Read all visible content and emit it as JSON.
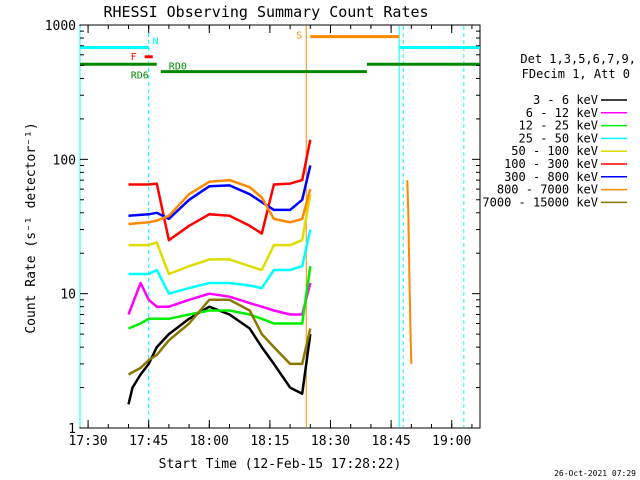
{
  "chart_data": {
    "type": "line",
    "title": "RHESSI Observing Summary Count Rates",
    "xlabel": "Start Time (12-Feb-15 17:28:22)",
    "ylabel": "Count Rate (s⁻¹ detector⁻¹)",
    "y_scale": "log",
    "xlim": [
      "17:28",
      "19:07"
    ],
    "ylim": [
      1,
      1000
    ],
    "x_ticks": [
      "17:30",
      "17:45",
      "18:00",
      "18:15",
      "18:30",
      "18:45",
      "19:00"
    ],
    "y_ticks": [
      "1",
      "10",
      "100",
      "1000"
    ],
    "detector_info": [
      "Det 1,3,5,6,7,9,",
      "FDecim 1, Att 0"
    ],
    "timestamp": "26-Oct-2021 07:29",
    "legend_position": "right",
    "series": [
      {
        "name": "3 - 6 keV",
        "color": "#000000",
        "x": [
          "17:40",
          "17:41",
          "17:43",
          "17:45",
          "17:47",
          "17:50",
          "17:55",
          "18:00",
          "18:05",
          "18:10",
          "18:13",
          "18:16",
          "18:20",
          "18:23",
          "18:25"
        ],
        "values": [
          1.5,
          2.0,
          2.5,
          3.0,
          4.0,
          5.0,
          6.5,
          8.0,
          7.0,
          5.5,
          4.0,
          3.0,
          2.0,
          1.8,
          5.0
        ]
      },
      {
        "name": "6 - 12 keV",
        "color": "#ff00ff",
        "x": [
          "17:40",
          "17:43",
          "17:45",
          "17:47",
          "17:50",
          "17:55",
          "18:00",
          "18:05",
          "18:10",
          "18:13",
          "18:16",
          "18:20",
          "18:23",
          "18:25"
        ],
        "values": [
          7.0,
          12.0,
          9.0,
          8.0,
          8.0,
          9.0,
          10.0,
          9.5,
          8.5,
          8.0,
          7.5,
          7.0,
          7.0,
          12.0
        ]
      },
      {
        "name": "12 - 25 keV",
        "color": "#00ee00",
        "x": [
          "17:40",
          "17:43",
          "17:45",
          "17:47",
          "17:50",
          "17:55",
          "18:00",
          "18:05",
          "18:10",
          "18:13",
          "18:16",
          "18:20",
          "18:23",
          "18:25"
        ],
        "values": [
          5.5,
          6.0,
          6.5,
          6.5,
          6.5,
          7.0,
          7.5,
          7.5,
          7.0,
          6.5,
          6.0,
          6.0,
          6.0,
          16.0
        ]
      },
      {
        "name": "25 - 50 keV",
        "color": "#00ffff",
        "x": [
          "17:40",
          "17:45",
          "17:47",
          "17:50",
          "17:55",
          "18:00",
          "18:05",
          "18:10",
          "18:13",
          "18:16",
          "18:20",
          "18:23",
          "18:25"
        ],
        "values": [
          14.0,
          14.0,
          15.0,
          10.0,
          11.0,
          12.0,
          12.0,
          11.5,
          11.0,
          15.0,
          15.0,
          16.0,
          30.0
        ]
      },
      {
        "name": "50 - 100 keV",
        "color": "#dddd00",
        "x": [
          "17:40",
          "17:45",
          "17:47",
          "17:50",
          "17:55",
          "18:00",
          "18:05",
          "18:10",
          "18:13",
          "18:16",
          "18:20",
          "18:23",
          "18:25"
        ],
        "values": [
          23.0,
          23.0,
          24.0,
          14.0,
          16.0,
          18.0,
          18.0,
          16.0,
          15.0,
          23.0,
          23.0,
          25.0,
          55.0
        ]
      },
      {
        "name": "100 - 300 keV",
        "color": "#ff0000",
        "x": [
          "17:40",
          "17:45",
          "17:47",
          "17:50",
          "17:55",
          "18:00",
          "18:05",
          "18:10",
          "18:13",
          "18:16",
          "18:20",
          "18:23",
          "18:25"
        ],
        "values": [
          65.0,
          65.0,
          66.0,
          25.0,
          32.0,
          39.0,
          38.0,
          32.0,
          28.0,
          65.0,
          66.0,
          70.0,
          140.0
        ]
      },
      {
        "name": "300 - 800 keV",
        "color": "#0000ff",
        "x": [
          "17:40",
          "17:45",
          "17:47",
          "17:50",
          "17:55",
          "18:00",
          "18:05",
          "18:10",
          "18:13",
          "18:16",
          "18:20",
          "18:23",
          "18:25"
        ],
        "values": [
          38.0,
          39.0,
          40.0,
          36.0,
          50.0,
          63.0,
          64.0,
          55.0,
          48.0,
          42.0,
          42.0,
          50.0,
          90.0
        ]
      },
      {
        "name": "800 - 7000 keV",
        "color": "#ff8800",
        "x": [
          "17:40",
          "17:45",
          "17:47",
          "17:50",
          "17:55",
          "18:00",
          "18:05",
          "18:10",
          "18:13",
          "18:16",
          "18:20",
          "18:23",
          "18:25"
        ],
        "values": [
          33.0,
          34.0,
          35.0,
          38.0,
          55.0,
          68.0,
          70.0,
          62.0,
          52.0,
          36.0,
          34.0,
          36.0,
          60.0
        ]
      },
      {
        "name": "7000 - 15000 keV",
        "color": "#887700",
        "x": [
          "17:40",
          "17:43",
          "17:45",
          "17:47",
          "17:50",
          "17:55",
          "18:00",
          "18:05",
          "18:10",
          "18:13",
          "18:16",
          "18:20",
          "18:23",
          "18:25"
        ],
        "values": [
          2.5,
          2.8,
          3.2,
          3.5,
          4.5,
          6.0,
          9.0,
          9.0,
          7.5,
          5.0,
          4.0,
          3.0,
          3.0,
          5.5
        ]
      }
    ],
    "late_spike": {
      "x_range": [
        "18:49",
        "18:50"
      ],
      "values": [
        70,
        40,
        15,
        6,
        3
      ]
    },
    "annotations": [
      {
        "label": "N",
        "color": "#00ffff",
        "x_range": [
          "17:28",
          "17:45"
        ],
        "y": 680
      },
      {
        "label": "",
        "color": "#00ffff",
        "x_range": [
          "18:47",
          "19:07"
        ],
        "y": 680
      },
      {
        "label": "F",
        "color": "#ff0000",
        "x_range": [
          "17:44",
          "17:46"
        ],
        "y": 580
      },
      {
        "label": "S",
        "color": "#ff8800",
        "x_range": [
          "18:25",
          "18:47"
        ],
        "y": 820
      },
      {
        "label": "RD6",
        "color": "#008800",
        "x_range": [
          "17:28",
          "17:47"
        ],
        "y": 510
      },
      {
        "label": "RD0",
        "color": "#008800",
        "x_range": [
          "17:48",
          "18:39"
        ],
        "y": 450
      },
      {
        "label": "",
        "color": "#008800",
        "x_range": [
          "18:39",
          "19:07"
        ],
        "y": 510
      }
    ],
    "vertical_lines": [
      {
        "x": "17:28",
        "color": "#00ffff",
        "style": "solid"
      },
      {
        "x": "17:45",
        "color": "#00ffff",
        "style": "dashed"
      },
      {
        "x": "18:24",
        "color": "#ff8800",
        "style": "solid"
      },
      {
        "x": "18:47",
        "color": "#00ffff",
        "style": "solid"
      },
      {
        "x": "18:48",
        "color": "#00ffff",
        "style": "dashed"
      },
      {
        "x": "19:03",
        "color": "#00ffff",
        "style": "dashed"
      }
    ]
  }
}
